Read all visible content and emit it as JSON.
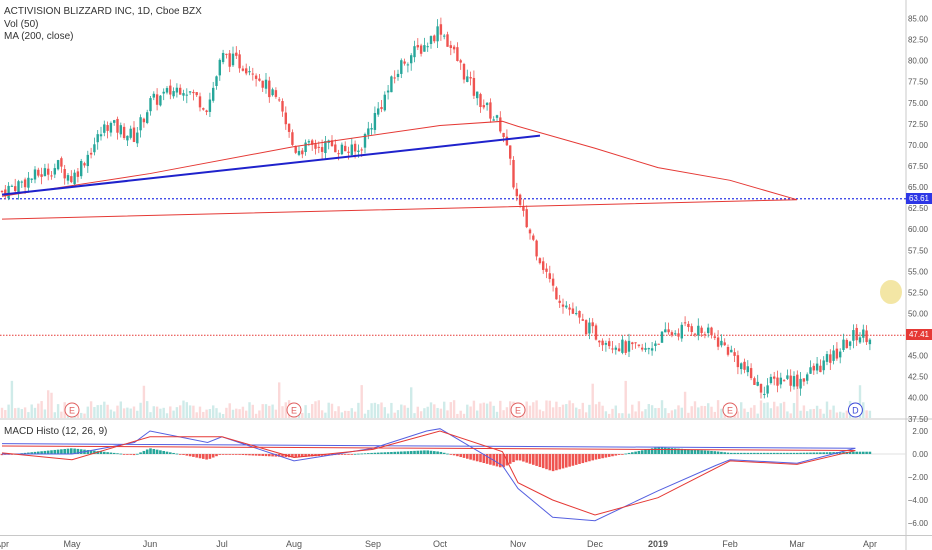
{
  "legend": {
    "symbol_line": "ACTIVISION BLIZZARD INC, 1D, Cboe BZX",
    "volume_line": "Vol (50)",
    "ma_line": "MA (200, close)",
    "macd_line": "MACD Histo (12, 26, 9)"
  },
  "price_tags": {
    "support": "63.61",
    "last": "47.41"
  },
  "colors": {
    "up": "#26a69a",
    "down": "#ef5350",
    "ma": "#e53935",
    "trendline": "#1f22cc",
    "support": "#2d37e6",
    "last_price": "#e53935",
    "macd": "#5560e0",
    "signal": "#e53935",
    "marker_circle": "#f3e6a5"
  },
  "chart_data": [
    {
      "type": "line",
      "panel": "price",
      "title": "ACTIVISION BLIZZARD INC, 1D, Cboe BZX",
      "x_ticks": [
        "Apr",
        "May",
        "Jun",
        "Jul",
        "Aug",
        "Sep",
        "Oct",
        "Nov",
        "Dec",
        "2019",
        "Feb",
        "Mar",
        "Apr"
      ],
      "y_ticks": [
        "85.00",
        "82.50",
        "80.00",
        "77.50",
        "75.00",
        "72.50",
        "70.00",
        "67.50",
        "65.00",
        "62.50",
        "60.00",
        "57.50",
        "55.00",
        "52.50",
        "50.00",
        "47.50",
        "45.00",
        "42.50",
        "40.00",
        "37.50"
      ],
      "ylim": [
        37.5,
        86.2
      ],
      "series": [
        {
          "name": "ACTIVISION BLIZZARD INC",
          "points": [
            {
              "x": "Apr",
              "y": 64.5
            },
            {
              "x": "Apr (late)",
              "y": 67.5
            },
            {
              "x": "May",
              "y": 66.0
            },
            {
              "x": "May (mid)",
              "y": 72.5
            },
            {
              "x": "May (late)",
              "y": 71.0
            },
            {
              "x": "Jun",
              "y": 75.0
            },
            {
              "x": "Jun (mid)",
              "y": 77.0
            },
            {
              "x": "Jun (late)",
              "y": 74.5
            },
            {
              "x": "Jul",
              "y": 80.5
            },
            {
              "x": "Jul (mid)",
              "y": 79.0
            },
            {
              "x": "Jul (late)",
              "y": 74.5
            },
            {
              "x": "Aug",
              "y": 69.5
            },
            {
              "x": "Aug (mid)",
              "y": 70.0
            },
            {
              "x": "Aug (late)",
              "y": 69.0
            },
            {
              "x": "Sep",
              "y": 73.0
            },
            {
              "x": "Sep (mid)",
              "y": 80.0
            },
            {
              "x": "Sep (late)",
              "y": 82.0
            },
            {
              "x": "Oct",
              "y": 84.0
            },
            {
              "x": "Oct (mid)",
              "y": 76.0
            },
            {
              "x": "Oct (late)",
              "y": 72.0
            },
            {
              "x": "Nov",
              "y": 63.0
            },
            {
              "x": "Nov (mid)",
              "y": 53.0
            },
            {
              "x": "Nov (late)",
              "y": 49.0
            },
            {
              "x": "Dec",
              "y": 47.5
            },
            {
              "x": "Dec (mid)",
              "y": 46.0
            },
            {
              "x": "Dec (late)",
              "y": 45.5
            },
            {
              "x": "2019",
              "y": 47.0
            },
            {
              "x": "Jan (mid)",
              "y": 48.5
            },
            {
              "x": "Jan (late)",
              "y": 47.0
            },
            {
              "x": "Feb",
              "y": 45.5
            },
            {
              "x": "Feb (mid)",
              "y": 41.0
            },
            {
              "x": "Feb (late)",
              "y": 42.5
            },
            {
              "x": "Mar",
              "y": 42.0
            },
            {
              "x": "Mar (mid)",
              "y": 44.5
            },
            {
              "x": "Mar (late)",
              "y": 47.5
            },
            {
              "x": "Apr",
              "y": 47.41
            }
          ]
        },
        {
          "name": "MA (200, close)",
          "points": [
            {
              "x": "Apr",
              "y": 63.9
            },
            {
              "x": "Jun",
              "y": 66.6
            },
            {
              "x": "Aug",
              "y": 69.8
            },
            {
              "x": "Oct",
              "y": 72.3
            },
            {
              "x": "Oct (late)",
              "y": 72.8
            },
            {
              "x": "Nov",
              "y": 72.2
            },
            {
              "x": "Dec",
              "y": 69.6
            },
            {
              "x": "2019",
              "y": 67.3
            },
            {
              "x": "Feb",
              "y": 65.8
            },
            {
              "x": "Mar",
              "y": 63.5
            },
            {
              "x": "Apr",
              "y": 61.2
            }
          ]
        },
        {
          "name": "Trendline",
          "points": [
            {
              "x": "Apr",
              "y": 64.1
            },
            {
              "x": "Nov",
              "y": 71.1
            }
          ]
        }
      ],
      "horizontal_lines": [
        63.61,
        47.41
      ],
      "event_markers": [
        {
          "label": "E",
          "x": "May"
        },
        {
          "label": "E",
          "x": "Aug"
        },
        {
          "label": "E",
          "x": "Nov"
        },
        {
          "label": "E",
          "x": "Feb"
        },
        {
          "label": "D",
          "x": "Mar (late)"
        }
      ]
    },
    {
      "type": "bar",
      "panel": "macd",
      "title": "MACD Histo (12, 26, 9)",
      "y_ticks": [
        "2.00",
        "0.00",
        "−2.00",
        "−4.00",
        "−6.00"
      ],
      "ylim": [
        -6.5,
        2.5
      ],
      "series": [
        {
          "name": "MACD",
          "points": [
            {
              "x": "Apr",
              "y": 0.0
            },
            {
              "x": "May",
              "y": 0.0
            },
            {
              "x": "May (late)",
              "y": 1.0
            },
            {
              "x": "Jun",
              "y": 2.0
            },
            {
              "x": "Jun (late)",
              "y": 1.0
            },
            {
              "x": "Jul",
              "y": 1.5
            },
            {
              "x": "Aug",
              "y": -0.6
            },
            {
              "x": "Sep",
              "y": 0.5
            },
            {
              "x": "Sep (late)",
              "y": 2.0
            },
            {
              "x": "Oct",
              "y": 2.2
            },
            {
              "x": "Oct (late)",
              "y": -1.0
            },
            {
              "x": "Nov",
              "y": -3.0
            },
            {
              "x": "Nov (mid)",
              "y": -5.5
            },
            {
              "x": "Dec",
              "y": -5.8
            },
            {
              "x": "2019",
              "y": -3.2
            },
            {
              "x": "Jan (late)",
              "y": -1.0
            },
            {
              "x": "Feb",
              "y": -0.5
            },
            {
              "x": "Mar",
              "y": -0.8
            },
            {
              "x": "Mar (late)",
              "y": 0.5
            },
            {
              "x": "Apr",
              "y": 0.9
            }
          ]
        },
        {
          "name": "Signal",
          "points": [
            {
              "x": "Apr",
              "y": 0.1
            },
            {
              "x": "May",
              "y": -0.5
            },
            {
              "x": "Jun",
              "y": 1.5
            },
            {
              "x": "Jul",
              "y": 1.5
            },
            {
              "x": "Aug",
              "y": -0.3
            },
            {
              "x": "Sep",
              "y": 0.4
            },
            {
              "x": "Oct",
              "y": 2.0
            },
            {
              "x": "Oct (late)",
              "y": 0.2
            },
            {
              "x": "Nov",
              "y": -2.5
            },
            {
              "x": "Nov (mid)",
              "y": -4.0
            },
            {
              "x": "Dec",
              "y": -5.3
            },
            {
              "x": "2019",
              "y": -3.8
            },
            {
              "x": "Feb",
              "y": -0.6
            },
            {
              "x": "Mar",
              "y": -0.9
            },
            {
              "x": "Mar (late)",
              "y": 0.3
            },
            {
              "x": "Apr",
              "y": 0.7
            }
          ]
        }
      ]
    }
  ]
}
